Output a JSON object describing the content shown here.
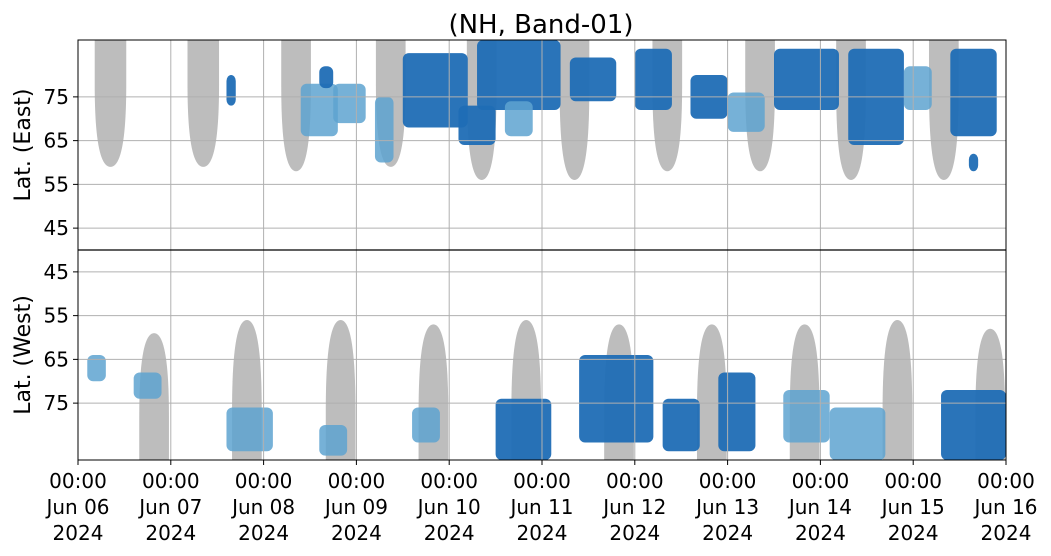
{
  "chart_data": {
    "type": "heatmap",
    "title": "(NH, Band-01)",
    "panels": [
      {
        "name": "east",
        "ylabel": "Lat. (East)",
        "ylim": [
          88,
          40
        ],
        "yticks": [
          45,
          55,
          65,
          75
        ],
        "ytick_labels": [
          "45",
          "55",
          "65",
          "75"
        ]
      },
      {
        "name": "west",
        "ylabel": "Lat. (West)",
        "ylim": [
          40,
          88
        ],
        "yticks": [
          45,
          55,
          65,
          75
        ],
        "ytick_labels": [
          "45",
          "55",
          "65",
          "75"
        ]
      }
    ],
    "x_range": [
      "2024-06-06 00:00",
      "2024-06-16 00:00"
    ],
    "x_ticks": [
      {
        "time": "00:00",
        "date": "Jun 06",
        "year": "2024"
      },
      {
        "time": "00:00",
        "date": "Jun 07",
        "year": "2024"
      },
      {
        "time": "00:00",
        "date": "Jun 08",
        "year": "2024"
      },
      {
        "time": "00:00",
        "date": "Jun 09",
        "year": "2024"
      },
      {
        "time": "00:00",
        "date": "Jun 10",
        "year": "2024"
      },
      {
        "time": "00:00",
        "date": "Jun 11",
        "year": "2024"
      },
      {
        "time": "00:00",
        "date": "Jun 12",
        "year": "2024"
      },
      {
        "time": "00:00",
        "date": "Jun 13",
        "year": "2024"
      },
      {
        "time": "00:00",
        "date": "Jun 14",
        "year": "2024"
      },
      {
        "time": "00:00",
        "date": "Jun 15",
        "year": "2024"
      },
      {
        "time": "00:00",
        "date": "Jun 16",
        "year": "2024"
      }
    ],
    "grid": true,
    "colors": {
      "strong": "#1f6db5",
      "weak": "#5ea3d0",
      "no_coverage": "#bdbdbd",
      "divider": "#000000"
    },
    "no_coverage_regions": [
      {
        "panel": "east",
        "center_day": 0.35,
        "half_width_days": 0.17,
        "lat_edge": 59
      },
      {
        "panel": "east",
        "center_day": 1.35,
        "half_width_days": 0.17,
        "lat_edge": 59
      },
      {
        "panel": "east",
        "center_day": 2.35,
        "half_width_days": 0.16,
        "lat_edge": 58
      },
      {
        "panel": "east",
        "center_day": 3.37,
        "half_width_days": 0.16,
        "lat_edge": 59
      },
      {
        "panel": "east",
        "center_day": 4.35,
        "half_width_days": 0.16,
        "lat_edge": 56
      },
      {
        "panel": "east",
        "center_day": 5.35,
        "half_width_days": 0.16,
        "lat_edge": 56
      },
      {
        "panel": "east",
        "center_day": 6.35,
        "half_width_days": 0.16,
        "lat_edge": 58
      },
      {
        "panel": "east",
        "center_day": 7.35,
        "half_width_days": 0.16,
        "lat_edge": 58
      },
      {
        "panel": "east",
        "center_day": 8.33,
        "half_width_days": 0.16,
        "lat_edge": 56
      },
      {
        "panel": "east",
        "center_day": 9.33,
        "half_width_days": 0.16,
        "lat_edge": 56
      },
      {
        "panel": "west",
        "center_day": 0.82,
        "half_width_days": 0.16,
        "lat_edge": 59
      },
      {
        "panel": "west",
        "center_day": 1.82,
        "half_width_days": 0.16,
        "lat_edge": 56
      },
      {
        "panel": "west",
        "center_day": 2.83,
        "half_width_days": 0.16,
        "lat_edge": 56
      },
      {
        "panel": "west",
        "center_day": 3.83,
        "half_width_days": 0.16,
        "lat_edge": 57
      },
      {
        "panel": "west",
        "center_day": 4.83,
        "half_width_days": 0.16,
        "lat_edge": 56
      },
      {
        "panel": "west",
        "center_day": 5.83,
        "half_width_days": 0.16,
        "lat_edge": 57
      },
      {
        "panel": "west",
        "center_day": 6.83,
        "half_width_days": 0.16,
        "lat_edge": 57
      },
      {
        "panel": "west",
        "center_day": 7.83,
        "half_width_days": 0.16,
        "lat_edge": 57
      },
      {
        "panel": "west",
        "center_day": 8.83,
        "half_width_days": 0.16,
        "lat_edge": 56
      },
      {
        "panel": "west",
        "center_day": 9.83,
        "half_width_days": 0.16,
        "lat_edge": 58
      }
    ],
    "activity_blobs": [
      {
        "panel": "east",
        "day_start": 1.6,
        "day_end": 1.7,
        "lat_min": 73,
        "lat_max": 80,
        "level": "strong"
      },
      {
        "panel": "east",
        "day_start": 2.4,
        "day_end": 2.8,
        "lat_min": 66,
        "lat_max": 78,
        "level": "weak"
      },
      {
        "panel": "east",
        "day_start": 2.6,
        "day_end": 2.75,
        "lat_min": 77,
        "lat_max": 82,
        "level": "strong"
      },
      {
        "panel": "east",
        "day_start": 2.75,
        "day_end": 3.1,
        "lat_min": 69,
        "lat_max": 78,
        "level": "weak"
      },
      {
        "panel": "east",
        "day_start": 3.5,
        "day_end": 4.2,
        "lat_min": 68,
        "lat_max": 85,
        "level": "strong"
      },
      {
        "panel": "east",
        "day_start": 3.2,
        "day_end": 3.4,
        "lat_min": 60,
        "lat_max": 75,
        "level": "weak"
      },
      {
        "panel": "east",
        "day_start": 4.1,
        "day_end": 4.5,
        "lat_min": 64,
        "lat_max": 73,
        "level": "strong"
      },
      {
        "panel": "east",
        "day_start": 4.3,
        "day_end": 5.2,
        "lat_min": 72,
        "lat_max": 88,
        "level": "strong"
      },
      {
        "panel": "east",
        "day_start": 4.6,
        "day_end": 4.9,
        "lat_min": 66,
        "lat_max": 74,
        "level": "weak"
      },
      {
        "panel": "east",
        "day_start": 5.3,
        "day_end": 5.8,
        "lat_min": 74,
        "lat_max": 84,
        "level": "strong"
      },
      {
        "panel": "east",
        "day_start": 6.0,
        "day_end": 6.4,
        "lat_min": 72,
        "lat_max": 86,
        "level": "strong"
      },
      {
        "panel": "east",
        "day_start": 6.6,
        "day_end": 7.0,
        "lat_min": 70,
        "lat_max": 80,
        "level": "strong"
      },
      {
        "panel": "east",
        "day_start": 7.0,
        "day_end": 7.4,
        "lat_min": 67,
        "lat_max": 76,
        "level": "weak"
      },
      {
        "panel": "east",
        "day_start": 7.5,
        "day_end": 8.2,
        "lat_min": 72,
        "lat_max": 86,
        "level": "strong"
      },
      {
        "panel": "east",
        "day_start": 8.3,
        "day_end": 8.9,
        "lat_min": 64,
        "lat_max": 86,
        "level": "strong"
      },
      {
        "panel": "east",
        "day_start": 8.9,
        "day_end": 9.2,
        "lat_min": 72,
        "lat_max": 82,
        "level": "weak"
      },
      {
        "panel": "east",
        "day_start": 9.4,
        "day_end": 9.9,
        "lat_min": 66,
        "lat_max": 86,
        "level": "strong"
      },
      {
        "panel": "east",
        "day_start": 9.6,
        "day_end": 9.7,
        "lat_min": 58,
        "lat_max": 62,
        "level": "strong"
      },
      {
        "panel": "west",
        "day_start": 0.1,
        "day_end": 0.3,
        "lat_min": 64,
        "lat_max": 70,
        "level": "weak"
      },
      {
        "panel": "west",
        "day_start": 0.6,
        "day_end": 0.9,
        "lat_min": 68,
        "lat_max": 74,
        "level": "weak"
      },
      {
        "panel": "west",
        "day_start": 1.6,
        "day_end": 2.1,
        "lat_min": 76,
        "lat_max": 86,
        "level": "weak"
      },
      {
        "panel": "west",
        "day_start": 2.6,
        "day_end": 2.9,
        "lat_min": 80,
        "lat_max": 87,
        "level": "weak"
      },
      {
        "panel": "west",
        "day_start": 3.6,
        "day_end": 3.9,
        "lat_min": 76,
        "lat_max": 84,
        "level": "weak"
      },
      {
        "panel": "west",
        "day_start": 4.5,
        "day_end": 5.1,
        "lat_min": 74,
        "lat_max": 88,
        "level": "strong"
      },
      {
        "panel": "west",
        "day_start": 5.4,
        "day_end": 6.2,
        "lat_min": 64,
        "lat_max": 84,
        "level": "strong"
      },
      {
        "panel": "west",
        "day_start": 6.3,
        "day_end": 6.7,
        "lat_min": 74,
        "lat_max": 86,
        "level": "strong"
      },
      {
        "panel": "west",
        "day_start": 6.9,
        "day_end": 7.3,
        "lat_min": 68,
        "lat_max": 86,
        "level": "strong"
      },
      {
        "panel": "west",
        "day_start": 7.6,
        "day_end": 8.1,
        "lat_min": 72,
        "lat_max": 84,
        "level": "weak"
      },
      {
        "panel": "west",
        "day_start": 8.1,
        "day_end": 8.7,
        "lat_min": 76,
        "lat_max": 88,
        "level": "weak"
      },
      {
        "panel": "west",
        "day_start": 9.3,
        "day_end": 10.0,
        "lat_min": 72,
        "lat_max": 88,
        "level": "strong"
      }
    ]
  }
}
